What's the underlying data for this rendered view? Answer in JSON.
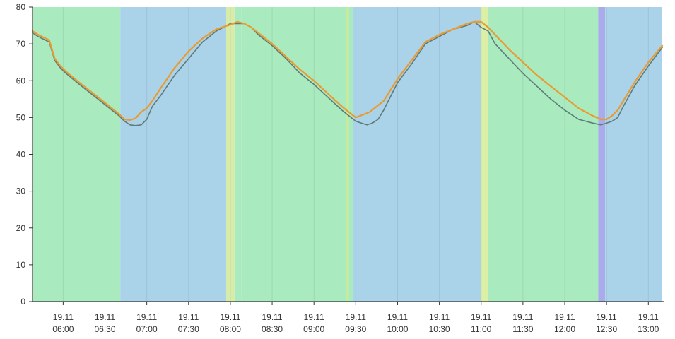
{
  "chart_data": {
    "type": "line",
    "title": "",
    "xlabel": "",
    "ylabel": "",
    "ylim": [
      0,
      80
    ],
    "yticks": [
      0,
      10,
      20,
      30,
      40,
      50,
      60,
      70,
      80
    ],
    "x_domain_minutes": [
      -22,
      430
    ],
    "xticks": [
      {
        "minutes": 0,
        "date": "19.11",
        "time": "06:00"
      },
      {
        "minutes": 30,
        "date": "19.11",
        "time": "06:30"
      },
      {
        "minutes": 60,
        "date": "19.11",
        "time": "07:00"
      },
      {
        "minutes": 90,
        "date": "19.11",
        "time": "07:30"
      },
      {
        "minutes": 120,
        "date": "19.11",
        "time": "08:00"
      },
      {
        "minutes": 150,
        "date": "19.11",
        "time": "08:30"
      },
      {
        "minutes": 180,
        "date": "19.11",
        "time": "09:00"
      },
      {
        "minutes": 210,
        "date": "19.11",
        "time": "09:30"
      },
      {
        "minutes": 240,
        "date": "19.11",
        "time": "10:00"
      },
      {
        "minutes": 270,
        "date": "19.11",
        "time": "10:30"
      },
      {
        "minutes": 300,
        "date": "19.11",
        "time": "11:00"
      },
      {
        "minutes": 330,
        "date": "19.11",
        "time": "11:30"
      },
      {
        "minutes": 360,
        "date": "19.11",
        "time": "12:00"
      },
      {
        "minutes": 390,
        "date": "19.11",
        "time": "12:30"
      },
      {
        "minutes": 420,
        "date": "19.11",
        "time": "13:00"
      }
    ],
    "grid": true,
    "legend": "none",
    "bands": [
      {
        "from": -22,
        "to": 41,
        "color": "#aaeabf"
      },
      {
        "from": 41,
        "to": 117,
        "color": "#aad3ea"
      },
      {
        "from": 117,
        "to": 123,
        "color": "#d8ecaa"
      },
      {
        "from": 123,
        "to": 128,
        "color": "#aaeabf"
      },
      {
        "from": 128,
        "to": 203,
        "color": "#aaeabf"
      },
      {
        "from": 203,
        "to": 205,
        "color": "#c8ea9a"
      },
      {
        "from": 205,
        "to": 208,
        "color": "#aaeabf"
      },
      {
        "from": 208,
        "to": 300,
        "color": "#aad3ea"
      },
      {
        "from": 300,
        "to": 305,
        "color": "#dcefa4"
      },
      {
        "from": 305,
        "to": 384,
        "color": "#aaeabf"
      },
      {
        "from": 384,
        "to": 389,
        "color": "#a9abea"
      },
      {
        "from": 389,
        "to": 430,
        "color": "#aad3ea"
      }
    ],
    "series": [
      {
        "color": "#5d7b78",
        "x": [
          -22,
          -18,
          -10,
          -6,
          -2,
          2,
          10,
          20,
          30,
          40,
          44,
          48,
          52,
          56,
          60,
          64,
          70,
          80,
          90,
          100,
          110,
          120,
          130,
          135,
          140,
          150,
          160,
          170,
          180,
          190,
          200,
          205,
          210,
          214,
          218,
          222,
          226,
          230,
          240,
          250,
          260,
          270,
          280,
          290,
          295,
          300,
          305,
          310,
          320,
          330,
          340,
          350,
          360,
          370,
          380,
          386,
          390,
          394,
          398,
          402,
          410,
          420,
          430
        ],
        "y": [
          73,
          72,
          70.5,
          65.5,
          63.5,
          62,
          59.5,
          56.5,
          53.5,
          50.5,
          49,
          48,
          47.8,
          48,
          49.5,
          53,
          56,
          61.5,
          66,
          70.5,
          73.5,
          75.5,
          75.5,
          74.5,
          72.5,
          69.5,
          66,
          62,
          59,
          55.5,
          52,
          50.5,
          49,
          48.5,
          48,
          48.5,
          49.5,
          52,
          59.5,
          64.5,
          70,
          72,
          74,
          75,
          76,
          74.5,
          73.5,
          70,
          66,
          62,
          58.5,
          55,
          52,
          49.5,
          48.5,
          48,
          48.5,
          49,
          50,
          53,
          58.5,
          64,
          69
        ]
      },
      {
        "color": "#ea9a30",
        "x": [
          -22,
          -18,
          -10,
          -6,
          -2,
          2,
          10,
          20,
          30,
          40,
          44,
          48,
          52,
          56,
          60,
          64,
          70,
          80,
          90,
          100,
          110,
          120,
          125,
          130,
          135,
          140,
          150,
          160,
          170,
          180,
          190,
          200,
          205,
          210,
          220,
          230,
          240,
          250,
          260,
          270,
          280,
          290,
          295,
          300,
          305,
          310,
          320,
          330,
          340,
          350,
          360,
          370,
          380,
          386,
          390,
          394,
          398,
          402,
          410,
          420,
          430
        ],
        "y": [
          73.5,
          72.5,
          71,
          66,
          64,
          62.5,
          60,
          57,
          54,
          51,
          49.5,
          49.3,
          49.8,
          51.5,
          52.5,
          54.5,
          58,
          63.5,
          68,
          71.5,
          74,
          75.2,
          76,
          75.5,
          74.5,
          73,
          70,
          66.5,
          63,
          60,
          56.5,
          53,
          51.5,
          50,
          51.5,
          54.5,
          60.5,
          65.5,
          70.5,
          72.5,
          74,
          75.5,
          76,
          76,
          74.5,
          72.5,
          68.5,
          65,
          61.5,
          58.5,
          55.5,
          52.5,
          50.5,
          49.5,
          49.5,
          50.5,
          52,
          54.5,
          59.5,
          65,
          69.5
        ]
      }
    ]
  }
}
